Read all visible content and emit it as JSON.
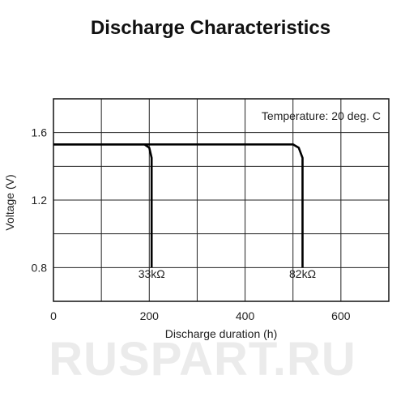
{
  "watermark": {
    "text": "RUSPART.RU"
  },
  "chart_data": {
    "type": "line",
    "title": "Discharge Characteristics",
    "xlabel": "Discharge duration (h)",
    "ylabel": "Voltage (V)",
    "xlim": [
      0,
      700
    ],
    "ylim": [
      0.6,
      1.8
    ],
    "xticks": [
      0,
      200,
      400,
      600
    ],
    "xtick_labels": [
      "0",
      "200",
      "400",
      "600"
    ],
    "yticks": [
      0.8,
      1.2,
      1.6
    ],
    "ytick_labels": [
      "0.8",
      "1.2",
      "1.6"
    ],
    "x_grid": [
      100,
      200,
      300,
      400,
      500,
      600
    ],
    "y_grid": [
      0.8,
      1.0,
      1.2,
      1.4,
      1.6
    ],
    "grid": true,
    "annotation": "Temperature: 20 deg. C",
    "line_color": "#000000",
    "series": [
      {
        "name": "",
        "x": [
          0,
          190,
          200,
          205,
          205
        ],
        "y": [
          1.53,
          1.53,
          1.51,
          1.45,
          0.8
        ]
      },
      {
        "name": "",
        "x": [
          0,
          500,
          512,
          520,
          520
        ],
        "y": [
          1.53,
          1.53,
          1.51,
          1.45,
          0.8
        ]
      }
    ],
    "curve_labels": [
      {
        "text": "33kΩ",
        "x": 205,
        "y": 0.74
      },
      {
        "text": "82kΩ",
        "x": 520,
        "y": 0.74
      }
    ]
  }
}
